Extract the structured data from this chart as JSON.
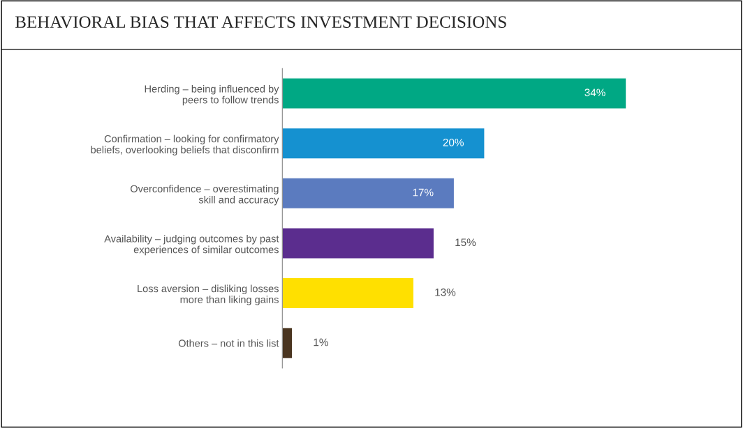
{
  "chart_data": {
    "type": "bar",
    "orientation": "horizontal",
    "title": "BEHAVIORAL BIAS THAT AFFECTS INVESTMENT DECISIONS",
    "categories": [
      "Herding – being influenced by\npeers to follow trends",
      "Confirmation – looking for confirmatory\nbeliefs, overlooking beliefs that disconfirm",
      "Overconfidence – overestimating\nskill and accuracy",
      "Availability – judging outcomes by past\nexperiences of similar outcomes",
      "Loss aversion – disliking losses\nmore than liking gains",
      "Others – not in this list"
    ],
    "values": [
      34,
      20,
      17,
      15,
      13,
      1
    ],
    "colors": [
      "#00a884",
      "#1591d0",
      "#5b7bbf",
      "#5b2d8e",
      "#ffe000",
      "#4a3520"
    ],
    "value_labels": [
      "34%",
      "20%",
      "17%",
      "15%",
      "13%",
      "1%"
    ],
    "grid": false,
    "legend": false,
    "tick_labels": "y"
  }
}
